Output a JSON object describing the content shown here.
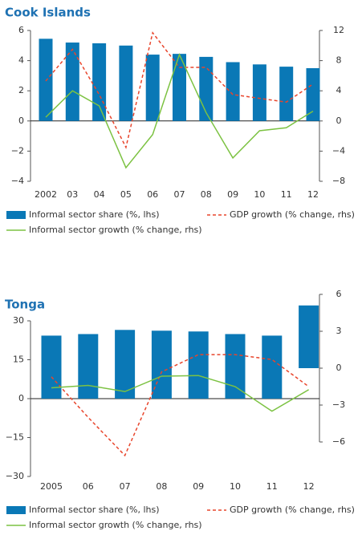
{
  "chart_data": [
    {
      "type": "bar",
      "title": "Cook Islands",
      "categories": [
        "2002",
        "03",
        "04",
        "05",
        "06",
        "07",
        "08",
        "09",
        "10",
        "11",
        "12"
      ],
      "ylim": [
        -4,
        6
      ],
      "yticks": [
        {
          "value": -4,
          "label": "−4"
        },
        {
          "value": -2,
          "label": "−2"
        },
        0,
        2,
        4,
        6
      ],
      "y2lim": [
        -8,
        12
      ],
      "y2ticks": [
        {
          "value": -8,
          "label": "−8"
        },
        {
          "value": -4,
          "label": "−4"
        },
        0,
        4,
        8,
        12
      ],
      "series": [
        {
          "name": "Informal sector share (%, lhs)",
          "type": "bar",
          "color": "#0a78b6",
          "values": [
            5.45,
            5.2,
            5.15,
            5.0,
            4.4,
            4.45,
            4.25,
            3.9,
            3.75,
            3.6,
            3.5
          ]
        },
        {
          "name": "GDP growth (% change, rhs)",
          "type": "line",
          "style": "dashed",
          "axis": "y2",
          "color": "#e8452c",
          "values": [
            5.3,
            9.5,
            3.5,
            -3.5,
            11.7,
            7.1,
            7.1,
            3.5,
            3.0,
            2.5,
            4.9
          ]
        },
        {
          "name": "Informal sector growth (% change, rhs)",
          "type": "line",
          "style": "solid",
          "axis": "y2",
          "color": "#7cc242",
          "values": [
            0.5,
            4.0,
            2.0,
            -6.2,
            -1.8,
            8.8,
            1.1,
            -4.9,
            -1.3,
            -0.9,
            1.3
          ]
        }
      ]
    },
    {
      "type": "bar",
      "title": "Tonga",
      "categories": [
        "2005",
        "06",
        "07",
        "08",
        "09",
        "10",
        "11",
        "12"
      ],
      "ylim": [
        -30,
        30
      ],
      "yticks": [
        {
          "value": -30,
          "label": "−30"
        },
        {
          "value": -15,
          "label": "−15"
        },
        0,
        15,
        30
      ],
      "y2lim": [
        -6,
        6
      ],
      "y2ticks": [
        {
          "value": -6,
          "label": "−6"
        },
        {
          "value": -3,
          "label": "−3"
        },
        0,
        3,
        6
      ],
      "series": [
        {
          "name": "Informal sector share (%, lhs)",
          "type": "bar",
          "color": "#0a78b6",
          "values": [
            24.3,
            24.9,
            26.5,
            26.2,
            25.9,
            24.9,
            24.3,
            null
          ]
        },
        {
          "type": "bar",
          "axis": "y2",
          "color": "#0a78b6",
          "values": [
            null,
            null,
            null,
            null,
            null,
            null,
            null,
            5.1
          ]
        },
        {
          "name": "GDP growth (% change, rhs)",
          "type": "line",
          "style": "dashed",
          "axis": "y2",
          "color": "#e8452c",
          "values": [
            -0.7,
            -4.0,
            -7.1,
            -0.3,
            1.1,
            1.1,
            0.7,
            -1.5
          ]
        },
        {
          "name": "Informal sector growth (% change, rhs)",
          "type": "line",
          "style": "solid",
          "axis": "y2",
          "color": "#7cc242",
          "values": [
            -1.6,
            -1.4,
            -1.9,
            -0.65,
            -0.6,
            -1.5,
            -3.5,
            -1.75
          ]
        }
      ]
    }
  ]
}
